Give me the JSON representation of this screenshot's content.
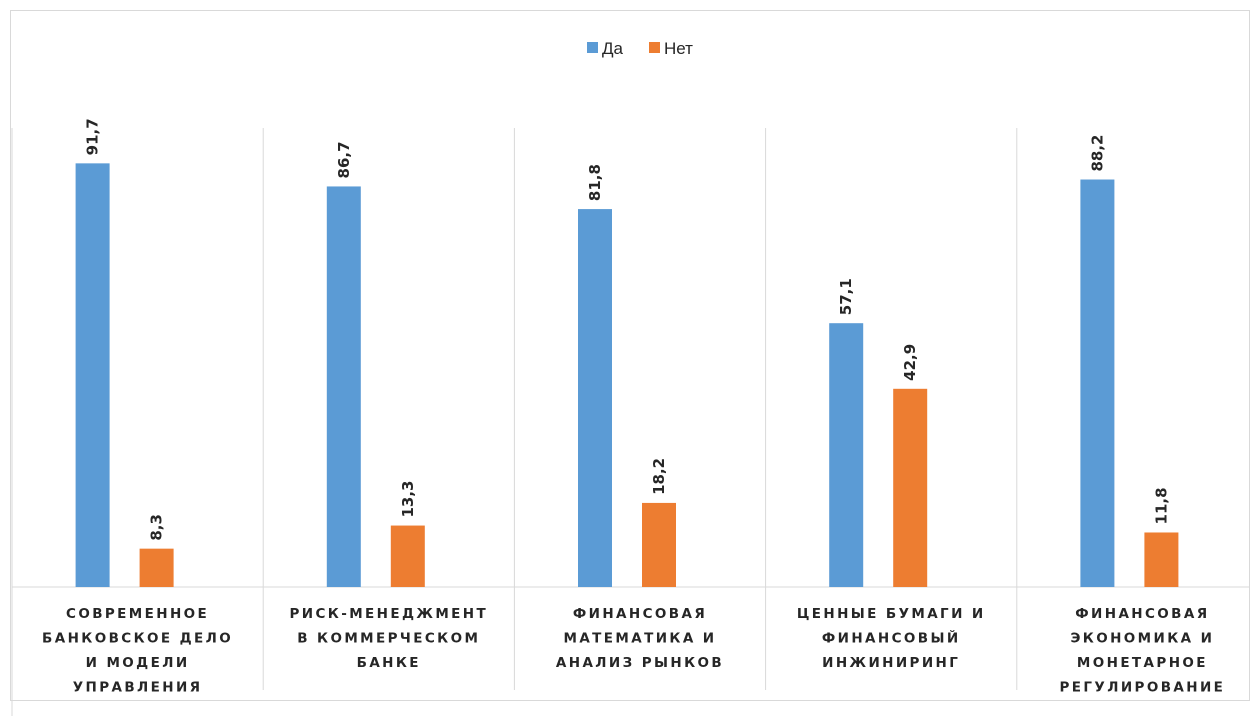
{
  "chart_data": {
    "type": "bar",
    "categories": [
      [
        "СОВРЕМЕННОЕ",
        "БАНКОВСКОЕ ДЕЛО",
        "И МОДЕЛИ",
        "УПРАВЛЕНИЯ"
      ],
      [
        "РИСК-МЕНЕДЖМЕНТ",
        "В КОММЕРЧЕСКОМ",
        "БАНКЕ"
      ],
      [
        "ФИНАНСОВАЯ",
        "МАТЕМАТИКА И",
        "АНАЛИЗ РЫНКОВ"
      ],
      [
        "ЦЕННЫЕ БУМАГИ И",
        "ФИНАНСОВЫЙ",
        "ИНЖИНИРИНГ"
      ],
      [
        "ФИНАНСОВАЯ",
        "ЭКОНОМИКА И",
        "МОНЕТАРНОЕ",
        "РЕГУЛИРОВАНИЕ"
      ]
    ],
    "series": [
      {
        "name": "Да",
        "color": "#5B9BD5",
        "values": [
          91.7,
          86.7,
          81.8,
          57.1,
          88.2
        ],
        "labels": [
          "91,7",
          "86,7",
          "81,8",
          "57,1",
          "88,2"
        ]
      },
      {
        "name": "Нет",
        "color": "#ED7D31",
        "values": [
          8.3,
          13.3,
          18.2,
          42.9,
          11.8
        ],
        "labels": [
          "8,3",
          "13,3",
          "18,2",
          "42,9",
          "11,8"
        ]
      }
    ],
    "ylim": [
      0,
      100
    ],
    "grid": false,
    "legend_position": "top-center",
    "data_labels": "rotated-vertical"
  }
}
